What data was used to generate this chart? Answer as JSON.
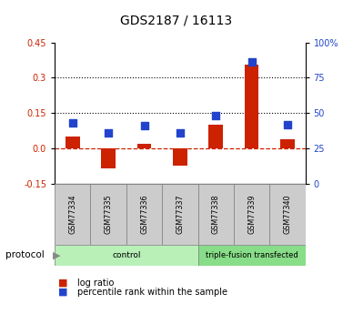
{
  "title": "GDS2187 / 16113",
  "samples": [
    "GSM77334",
    "GSM77335",
    "GSM77336",
    "GSM77337",
    "GSM77338",
    "GSM77339",
    "GSM77340"
  ],
  "log_ratio": [
    0.05,
    -0.085,
    0.02,
    -0.075,
    0.1,
    0.355,
    0.04
  ],
  "percentile_rank_pct": [
    43,
    36,
    41,
    36,
    48,
    86,
    42
  ],
  "groups": [
    {
      "label": "control",
      "start": 0,
      "end": 4
    },
    {
      "label": "triple-fusion transfected",
      "start": 4,
      "end": 7
    }
  ],
  "ylim_left": [
    -0.15,
    0.45
  ],
  "ylim_right": [
    0,
    100
  ],
  "y_left_ticks": [
    -0.15,
    0.0,
    0.15,
    0.3,
    0.45
  ],
  "y_right_ticks": [
    0,
    25,
    50,
    75,
    100
  ],
  "y_right_tick_labels": [
    "0",
    "25",
    "50",
    "75",
    "100%"
  ],
  "hline_0_val": 0.0,
  "hline_1_val": 0.15,
  "hline_2_val": 0.3,
  "bar_color": "#cc2200",
  "square_color": "#2244cc",
  "bar_width": 0.4,
  "square_size": 30,
  "legend_log_ratio": "log ratio",
  "legend_percentile": "percentile rank within the sample",
  "protocol_label": "protocol",
  "background_color": "#ffffff",
  "tick_label_color_left": "#cc2200",
  "tick_label_color_right": "#2244cc",
  "label_area_color": "#cccccc",
  "control_group_color": "#b8f0b8",
  "transfected_group_color": "#88dd88",
  "num_control": 4,
  "num_total": 7
}
